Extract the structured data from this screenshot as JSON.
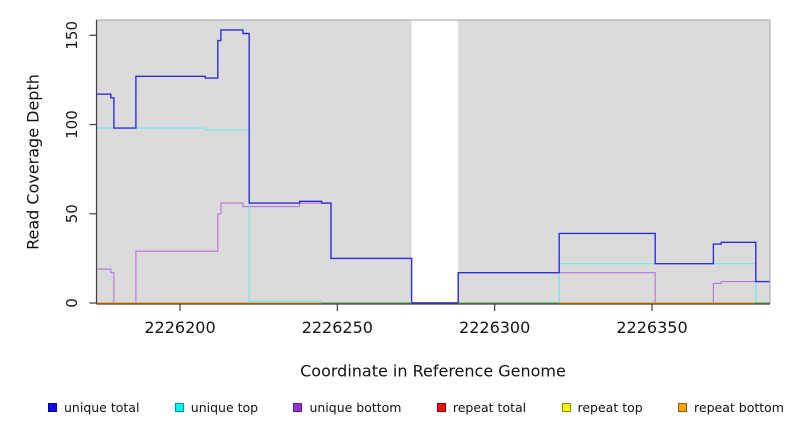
{
  "chart_data": {
    "type": "line",
    "step": true,
    "title": "",
    "xlabel": "Coordinate in Reference Genome",
    "ylabel": "Read Coverage Depth",
    "xlim": [
      2226173.5,
      2226387.5
    ],
    "ylim": [
      0,
      158
    ],
    "x_ticks": [
      2226200,
      2226250,
      2226300,
      2226350
    ],
    "y_ticks": [
      0,
      50,
      100,
      150
    ],
    "grid": false,
    "plot_bg": "#DBDBDB",
    "masked_region": {
      "from": 2226273.6,
      "to": 2226288.4,
      "color": "#FFFFFF"
    },
    "series": [
      {
        "id": "repeat-total",
        "name": "repeat total",
        "color": "#E60000",
        "width": 1,
        "steps": [
          [
            2226173.5,
            0
          ]
        ]
      },
      {
        "id": "repeat-top",
        "name": "repeat top",
        "color": "#F5F500",
        "width": 1,
        "steps": [
          [
            2226173.5,
            0
          ]
        ]
      },
      {
        "id": "repeat-bottom",
        "name": "repeat bottom",
        "color": "#FFA319",
        "width": 1.2,
        "steps": [
          [
            2226173.5,
            0
          ]
        ]
      },
      {
        "id": "unique-bottom",
        "name": "unique bottom",
        "color": "#BE72DC",
        "width": 1.1,
        "steps": [
          [
            2226173.5,
            19
          ],
          [
            2226178,
            17
          ],
          [
            2226179,
            0
          ],
          [
            2226186,
            29
          ],
          [
            2226212,
            50
          ],
          [
            2226213,
            56
          ],
          [
            2226220,
            54
          ],
          [
            2226238,
            56
          ],
          [
            2226248,
            25
          ],
          [
            2226273.6,
            0
          ],
          [
            2226288.4,
            17
          ],
          [
            2226351,
            0
          ],
          [
            2226369.5,
            11
          ],
          [
            2226372,
            12
          ]
        ]
      },
      {
        "id": "unique-top",
        "name": "unique top",
        "color": "#6EE7EA",
        "width": 1.1,
        "steps": [
          [
            2226173.5,
            98
          ],
          [
            2226208,
            97
          ],
          [
            2226222,
            1
          ],
          [
            2226245,
            0
          ],
          [
            2226320.5,
            22
          ],
          [
            2226383,
            0
          ]
        ]
      },
      {
        "id": "unique-total",
        "name": "unique total",
        "color": "#2E2EE0",
        "width": 1.4,
        "steps": [
          [
            2226173.5,
            117
          ],
          [
            2226178,
            115
          ],
          [
            2226179,
            98
          ],
          [
            2226186,
            127
          ],
          [
            2226208,
            126
          ],
          [
            2226212,
            147
          ],
          [
            2226213,
            153
          ],
          [
            2226220,
            151
          ],
          [
            2226222,
            56
          ],
          [
            2226238,
            57
          ],
          [
            2226245,
            56
          ],
          [
            2226248,
            25
          ],
          [
            2226273.6,
            0
          ],
          [
            2226288.4,
            17
          ],
          [
            2226320.5,
            39
          ],
          [
            2226351,
            22
          ],
          [
            2226369.5,
            33
          ],
          [
            2226372,
            34
          ],
          [
            2226383,
            12
          ]
        ]
      }
    ],
    "baseline_segments": [
      {
        "from": 2226173.5,
        "to": 2226245,
        "color": "#FFA319"
      },
      {
        "from": 2226245,
        "to": 2226273.6,
        "color": "#5CBB5C"
      },
      {
        "from": 2226273.6,
        "to": 2226288.4,
        "color": "#2E2EE0"
      },
      {
        "from": 2226288.4,
        "to": 2226320.5,
        "color": "#5CBB5C"
      },
      {
        "from": 2226320.5,
        "to": 2226382.7,
        "color": "#FFA319"
      },
      {
        "from": 2226382.7,
        "to": 2226387.5,
        "color": "#5CBB5C"
      }
    ],
    "legend_position": "bottom"
  },
  "legend": {
    "items": [
      {
        "id": "unique-total",
        "label": "unique total",
        "fill": "#0D0DF2",
        "border": "#0000A8"
      },
      {
        "id": "unique-top",
        "label": "unique top",
        "fill": "#00F2F2",
        "border": "#009999"
      },
      {
        "id": "unique-bottom",
        "label": "unique bottom",
        "fill": "#9932CC",
        "border": "#5E1A86"
      },
      {
        "id": "repeat-total",
        "label": "repeat total",
        "fill": "#F20D0D",
        "border": "#8F0000"
      },
      {
        "id": "repeat-top",
        "label": "repeat top",
        "fill": "#F5F500",
        "border": "#8F8F00"
      },
      {
        "id": "repeat-bottom",
        "label": "repeat bottom",
        "fill": "#FFA500",
        "border": "#8F5E00"
      }
    ]
  }
}
